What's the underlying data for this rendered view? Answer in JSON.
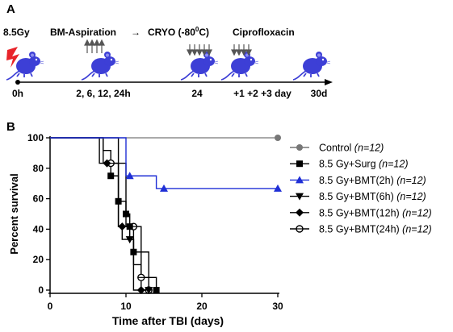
{
  "panel_a": {
    "label": "A",
    "dose": "8.5Gy",
    "bm_aspiration": "BM-Aspiration",
    "arrow_glyph": "→",
    "cryo": "CRYO (-80",
    "cryo_sup": "0",
    "cryo_end": "C)",
    "cipro": "Ciprofloxacin",
    "timepoints": [
      "0h",
      "2, 6, 12, 24h",
      "24",
      "+1 +2 +3 day",
      "30d"
    ],
    "icons": [
      "mouse-icon",
      "lightning-icon",
      "up-arrow-icon",
      "down-arrow-icon"
    ],
    "colors": {
      "mouse": "#3d3fd6",
      "lightning": "#e8242a",
      "arrow": "#555555"
    }
  },
  "panel_b": {
    "label": "B"
  },
  "chart_data": {
    "type": "line",
    "step": true,
    "xlabel": "Time after TBI (days)",
    "ylabel": "Percent survival",
    "xlim": [
      0,
      30
    ],
    "ylim": [
      0,
      100
    ],
    "xticks": [
      "0",
      "10",
      "20",
      "30"
    ],
    "yticks": [
      "0",
      "20",
      "40",
      "60",
      "80",
      "100"
    ],
    "legend_position": "right",
    "series": [
      {
        "name": "Control",
        "n": "(n=12)",
        "color": "#777777",
        "marker": "circle-filled",
        "points": [
          [
            0,
            100
          ],
          [
            30,
            100
          ]
        ],
        "markers": [
          [
            30,
            100
          ]
        ]
      },
      {
        "name": "8.5 Gy+Surg",
        "n": "(n=12)",
        "color": "#000000",
        "marker": "square-filled",
        "points": [
          [
            0,
            100
          ],
          [
            7,
            100
          ],
          [
            7,
            91.7
          ],
          [
            8,
            91.7
          ],
          [
            8,
            75
          ],
          [
            9,
            75
          ],
          [
            9,
            58.3
          ],
          [
            10,
            58.3
          ],
          [
            10,
            50
          ],
          [
            10.5,
            50
          ],
          [
            10.5,
            41.7
          ],
          [
            11,
            41.7
          ],
          [
            11,
            25
          ],
          [
            13,
            25
          ],
          [
            13,
            8.3
          ],
          [
            14,
            8.3
          ],
          [
            14,
            0
          ]
        ],
        "markers": [
          [
            8,
            75
          ],
          [
            9,
            58.3
          ],
          [
            10,
            50
          ],
          [
            10.5,
            41.7
          ],
          [
            11,
            25
          ],
          [
            14,
            0
          ]
        ]
      },
      {
        "name": "8.5 Gy+BMT(2h)",
        "n": "(n=12)",
        "color": "#1f2fd6",
        "marker": "triangle-up-filled",
        "points": [
          [
            0,
            100
          ],
          [
            10,
            100
          ],
          [
            10,
            75
          ],
          [
            14,
            75
          ],
          [
            14,
            66.7
          ],
          [
            30,
            66.7
          ]
        ],
        "markers": [
          [
            10.5,
            75
          ],
          [
            15,
            66.7
          ],
          [
            30,
            66.7
          ]
        ]
      },
      {
        "name": "8.5 Gy+BMT(6h)",
        "n": "(n=12)",
        "color": "#000000",
        "marker": "triangle-down-filled",
        "points": [
          [
            0,
            100
          ],
          [
            9,
            100
          ],
          [
            9,
            83.3
          ],
          [
            10,
            83.3
          ],
          [
            10,
            41.7
          ],
          [
            10.5,
            41.7
          ],
          [
            10.5,
            33.3
          ],
          [
            11,
            33.3
          ],
          [
            11,
            16.7
          ],
          [
            12,
            16.7
          ],
          [
            12,
            0
          ],
          [
            13,
            0
          ]
        ],
        "markers": [
          [
            10.5,
            33.3
          ],
          [
            13,
            0
          ]
        ]
      },
      {
        "name": "8.5 Gy+BMT(12h)",
        "n": "(n=12)",
        "color": "#000000",
        "marker": "diamond-filled",
        "points": [
          [
            0,
            100
          ],
          [
            6.5,
            100
          ],
          [
            6.5,
            83.3
          ],
          [
            9,
            83.3
          ],
          [
            9,
            41.7
          ],
          [
            9.5,
            41.7
          ],
          [
            9.5,
            33.3
          ],
          [
            11,
            33.3
          ],
          [
            11,
            0
          ],
          [
            12,
            0
          ]
        ],
        "markers": [
          [
            7.5,
            83.3
          ],
          [
            9.5,
            41.7
          ],
          [
            12,
            0
          ]
        ]
      },
      {
        "name": "8.5 Gy+BMT(24h)",
        "n": "(n=12)",
        "color": "#000000",
        "marker": "circle-open-cross",
        "points": [
          [
            0,
            100
          ],
          [
            7,
            100
          ],
          [
            7,
            83.3
          ],
          [
            9,
            83.3
          ],
          [
            9,
            41.7
          ],
          [
            12,
            41.7
          ],
          [
            12,
            8.3
          ],
          [
            13,
            8.3
          ],
          [
            13,
            0
          ]
        ],
        "markers": [
          [
            8,
            83.3
          ],
          [
            11,
            41.7
          ],
          [
            12,
            8.3
          ],
          [
            13,
            0
          ]
        ]
      }
    ]
  }
}
